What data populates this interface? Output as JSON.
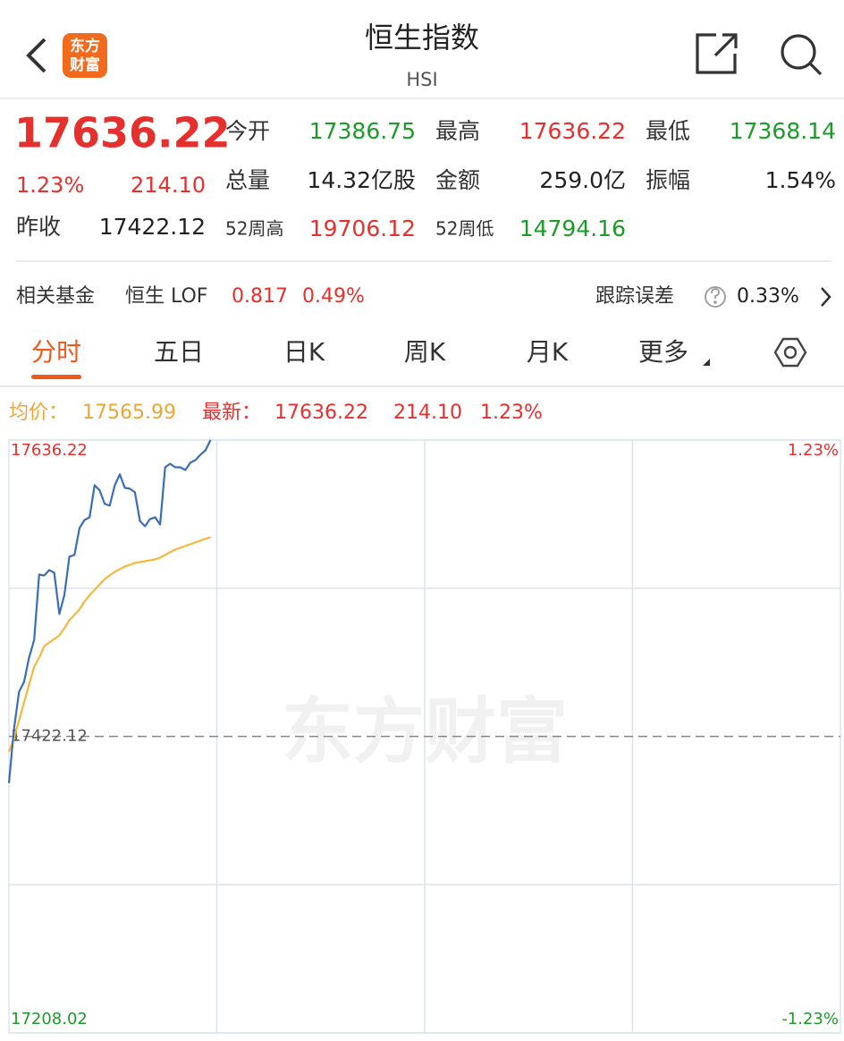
{
  "header": {
    "title": "恒生指数",
    "subtitle": "HSI",
    "logo": [
      "东方",
      "财富"
    ]
  },
  "quote": {
    "price": "17636.22",
    "change_pct": "1.23%",
    "change": "214.10",
    "prev_close_label": "昨收",
    "prev_close": "17422.12",
    "color": "#e5302e",
    "fields": [
      {
        "label": "今开",
        "value": "17386.75",
        "color": "#1c9b2b"
      },
      {
        "label": "最高",
        "value": "17636.22",
        "color": "#e5302e"
      },
      {
        "label": "最低",
        "value": "17368.14",
        "color": "#1c9b2b"
      },
      {
        "label": "总量",
        "value": "14.32亿股",
        "color": "#222222"
      },
      {
        "label": "金额",
        "value": "259.0亿",
        "color": "#222222"
      },
      {
        "label": "振幅",
        "value": "1.54%",
        "color": "#222222"
      },
      {
        "label": "52周高",
        "value": "19706.12",
        "color": "#e5302e"
      },
      {
        "label": "52周低",
        "value": "14794.16",
        "color": "#1c9b2b"
      }
    ]
  },
  "fund": {
    "label": "相关基金",
    "name": "恒生 LOF",
    "price": "0.817",
    "change": "0.49%",
    "tracking_label": "跟踪误差",
    "tracking": "0.33%"
  },
  "tabs": {
    "items": [
      "分时",
      "五日",
      "日K",
      "周K",
      "月K",
      "更多"
    ],
    "active": 0
  },
  "legend": {
    "avg_label": "均价：",
    "avg": "17565.99",
    "last_label": "最新：",
    "last": "17636.22",
    "change": "214.10",
    "change_pct": "1.23%"
  },
  "chart": {
    "type": "line",
    "watermark": "东方财富",
    "xlim": [
      0,
      330
    ],
    "x": [
      0,
      2,
      4,
      6,
      8,
      10,
      12,
      14,
      16,
      18,
      20,
      22,
      24,
      26,
      28,
      30,
      32,
      34,
      36,
      38,
      40,
      42,
      44,
      46,
      48,
      50,
      52,
      54,
      56,
      58,
      60,
      62,
      64,
      66,
      68,
      70,
      72,
      74,
      76,
      78,
      80
    ],
    "ylim": [
      17208.02,
      17636.22
    ],
    "yticks": [
      17208.02,
      17422.12,
      17636.22
    ],
    "y2lim": [
      -1.23,
      1.23
    ],
    "y2ticks": [
      {
        "value": 1.23,
        "label": "1.23%"
      },
      {
        "value": -1.23,
        "label": "-1.23%"
      }
    ],
    "series": [
      {
        "color": "#3a6eb5",
        "values": [
          17388.5,
          17427.3,
          17454.4,
          17461.5,
          17479.0,
          17491.9,
          17539.0,
          17538.4,
          17542.3,
          17540.3,
          17510.6,
          17524.2,
          17552.0,
          17553.2,
          17572.6,
          17578.4,
          17580.4,
          17603.6,
          17599.8,
          17590.1,
          17588.8,
          17603.6,
          17611.4,
          17601.7,
          17601.0,
          17598.5,
          17577.8,
          17573.9,
          17579.1,
          17580.4,
          17575.2,
          17616.5,
          17619.1,
          17616.5,
          17616.5,
          17614.6,
          17619.8,
          17621.7,
          17625.6,
          17628.8,
          17636.22
        ]
      },
      {
        "color": "#f6b73c",
        "values": [
          17411.1,
          17420.8,
          17433.7,
          17446.7,
          17459.6,
          17472.5,
          17479.0,
          17487.4,
          17490.0,
          17492.5,
          17495.1,
          17500.3,
          17506.1,
          17510.0,
          17513.8,
          17519.6,
          17524.2,
          17528.0,
          17531.9,
          17535.8,
          17538.4,
          17541.0,
          17542.9,
          17544.8,
          17546.1,
          17547.4,
          17548.1,
          17548.7,
          17549.4,
          17550.0,
          17551.3,
          17553.2,
          17555.2,
          17557.1,
          17558.4,
          17559.7,
          17561.0,
          17562.3,
          17563.6,
          17564.9,
          17565.99
        ]
      }
    ]
  }
}
